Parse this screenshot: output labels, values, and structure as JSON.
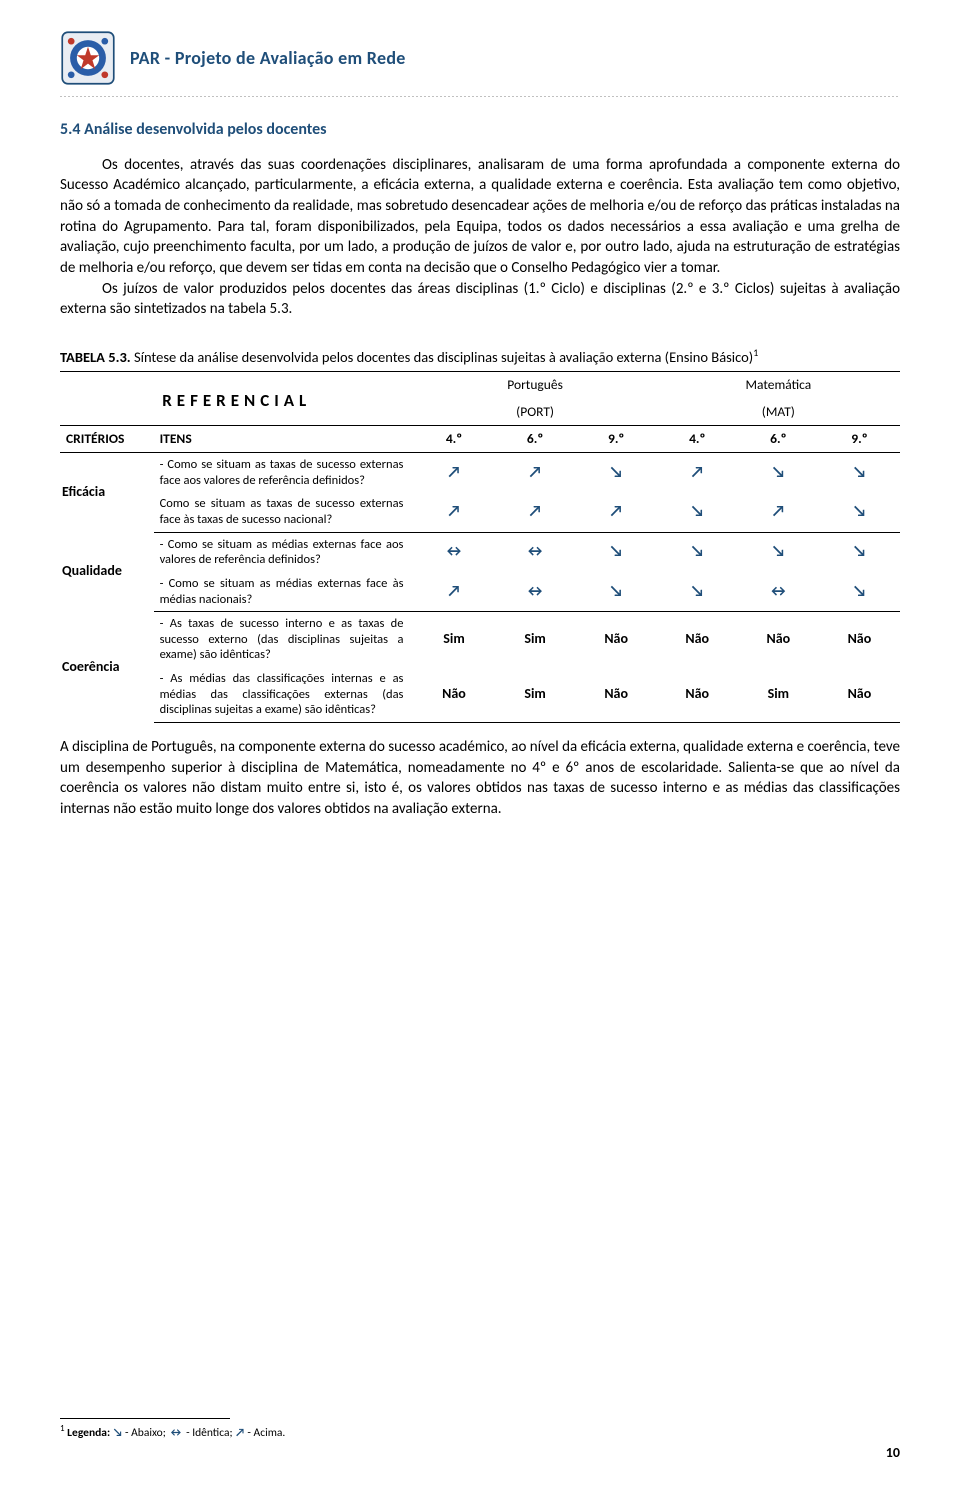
{
  "header": {
    "title": "PAR - Projeto de Avaliação em Rede"
  },
  "section": {
    "number": "5.4",
    "title": "Análise desenvolvida pelos docentes"
  },
  "paragraphs": {
    "p1": "Os docentes, através das suas coordenações disciplinares, analisaram de uma forma aprofundada a componente externa do Sucesso Académico alcançado, particularmente, a eficácia externa, a qualidade externa e coerência. Esta avaliação tem como objetivo, não só a tomada de conhecimento da realidade, mas sobretudo desencadear ações de melhoria e/ou de reforço das práticas instaladas na rotina do Agrupamento. Para tal, foram disponibilizados, pela Equipa, todos os dados necessários a essa avaliação e uma grelha de avaliação, cujo preenchimento faculta, por um lado, a produção de juízos de valor e, por outro lado, ajuda na estruturação de estratégias de melhoria e/ou reforço, que devem ser tidas em conta na decisão que o Conselho Pedagógico vier a tomar.",
    "p2": "Os juízos de valor produzidos pelos docentes das áreas disciplinas (1.º Ciclo) e disciplinas (2.º e 3.º Ciclos) sujeitas à avaliação externa são sintetizados na tabela 5.3."
  },
  "table": {
    "caption_label": "TABELA 5.3.",
    "caption_text": "Síntese da análise desenvolvida pelos docentes das disciplinas sujeitas à avaliação externa (Ensino Básico)",
    "ref_label": "REFERENCIAL",
    "subjects": {
      "port": {
        "name": "Português",
        "abbrev": "(PORT)"
      },
      "mat": {
        "name": "Matemática",
        "abbrev": "(MAT)"
      }
    },
    "col_criterios": "CRITÉRIOS",
    "col_itens": "ITENS",
    "grades": [
      "4.º",
      "6.º",
      "9.º",
      "4.º",
      "6.º",
      "9.º"
    ],
    "arrows": {
      "up": "↗",
      "down": "↘",
      "eq": "↔"
    },
    "groups": [
      {
        "criterion": "Eficácia",
        "rows": [
          {
            "item": "- Como se situam as taxas de sucesso externas face aos valores de referência definidos?",
            "vals": [
              "up",
              "up",
              "down",
              "up",
              "down",
              "down"
            ]
          },
          {
            "item": "Como se situam as taxas de sucesso externas face às taxas de sucesso nacional?",
            "vals": [
              "up",
              "up",
              "up",
              "down",
              "up",
              "down"
            ]
          }
        ]
      },
      {
        "criterion": "Qualidade",
        "rows": [
          {
            "item": "- Como se situam as médias externas face aos valores de referência definidos?",
            "vals": [
              "eq",
              "eq",
              "down",
              "down",
              "down",
              "down"
            ]
          },
          {
            "item": "- Como se situam as médias externas face às médias nacionais?",
            "vals": [
              "up",
              "eq",
              "down",
              "down",
              "eq",
              "down"
            ]
          }
        ]
      },
      {
        "criterion": "Coerência",
        "rows": [
          {
            "item": "- As taxas de sucesso interno e as taxas de sucesso externo (das disciplinas sujeitas a exame) são idênticas?",
            "vals_text": [
              "Sim",
              "Sim",
              "Não",
              "Não",
              "Não",
              "Não"
            ]
          },
          {
            "item": "- As médias das classificações internas e as médias das classificações externas (das disciplinas sujeitas a exame) são idênticas?",
            "vals_text": [
              "Não",
              "Sim",
              "Não",
              "Não",
              "Sim",
              "Não"
            ]
          }
        ]
      }
    ]
  },
  "after_table": "A disciplina de Português, na componente externa do sucesso académico, ao nível da eficácia externa, qualidade externa e coerência, teve um desempenho superior à disciplina de Matemática, nomeadamente no 4º e 6º anos de escolaridade. Salienta-se que ao nível da coerência os valores não distam muito entre si, isto é, os valores obtidos nas taxas de sucesso interno e as médias das classificações internas não estão muito longe dos valores obtidos na avaliação externa.",
  "footnote": {
    "marker": "1",
    "lead": "Legenda:",
    "items": [
      {
        "sym": "↘",
        "label": " - Abaixo;"
      },
      {
        "sym": "↔",
        "label": " - Idêntica;"
      },
      {
        "sym": "↗",
        "label": " - Acima."
      }
    ]
  },
  "page_number": "10",
  "colors": {
    "brand": "#1f4e79",
    "text": "#000000"
  }
}
